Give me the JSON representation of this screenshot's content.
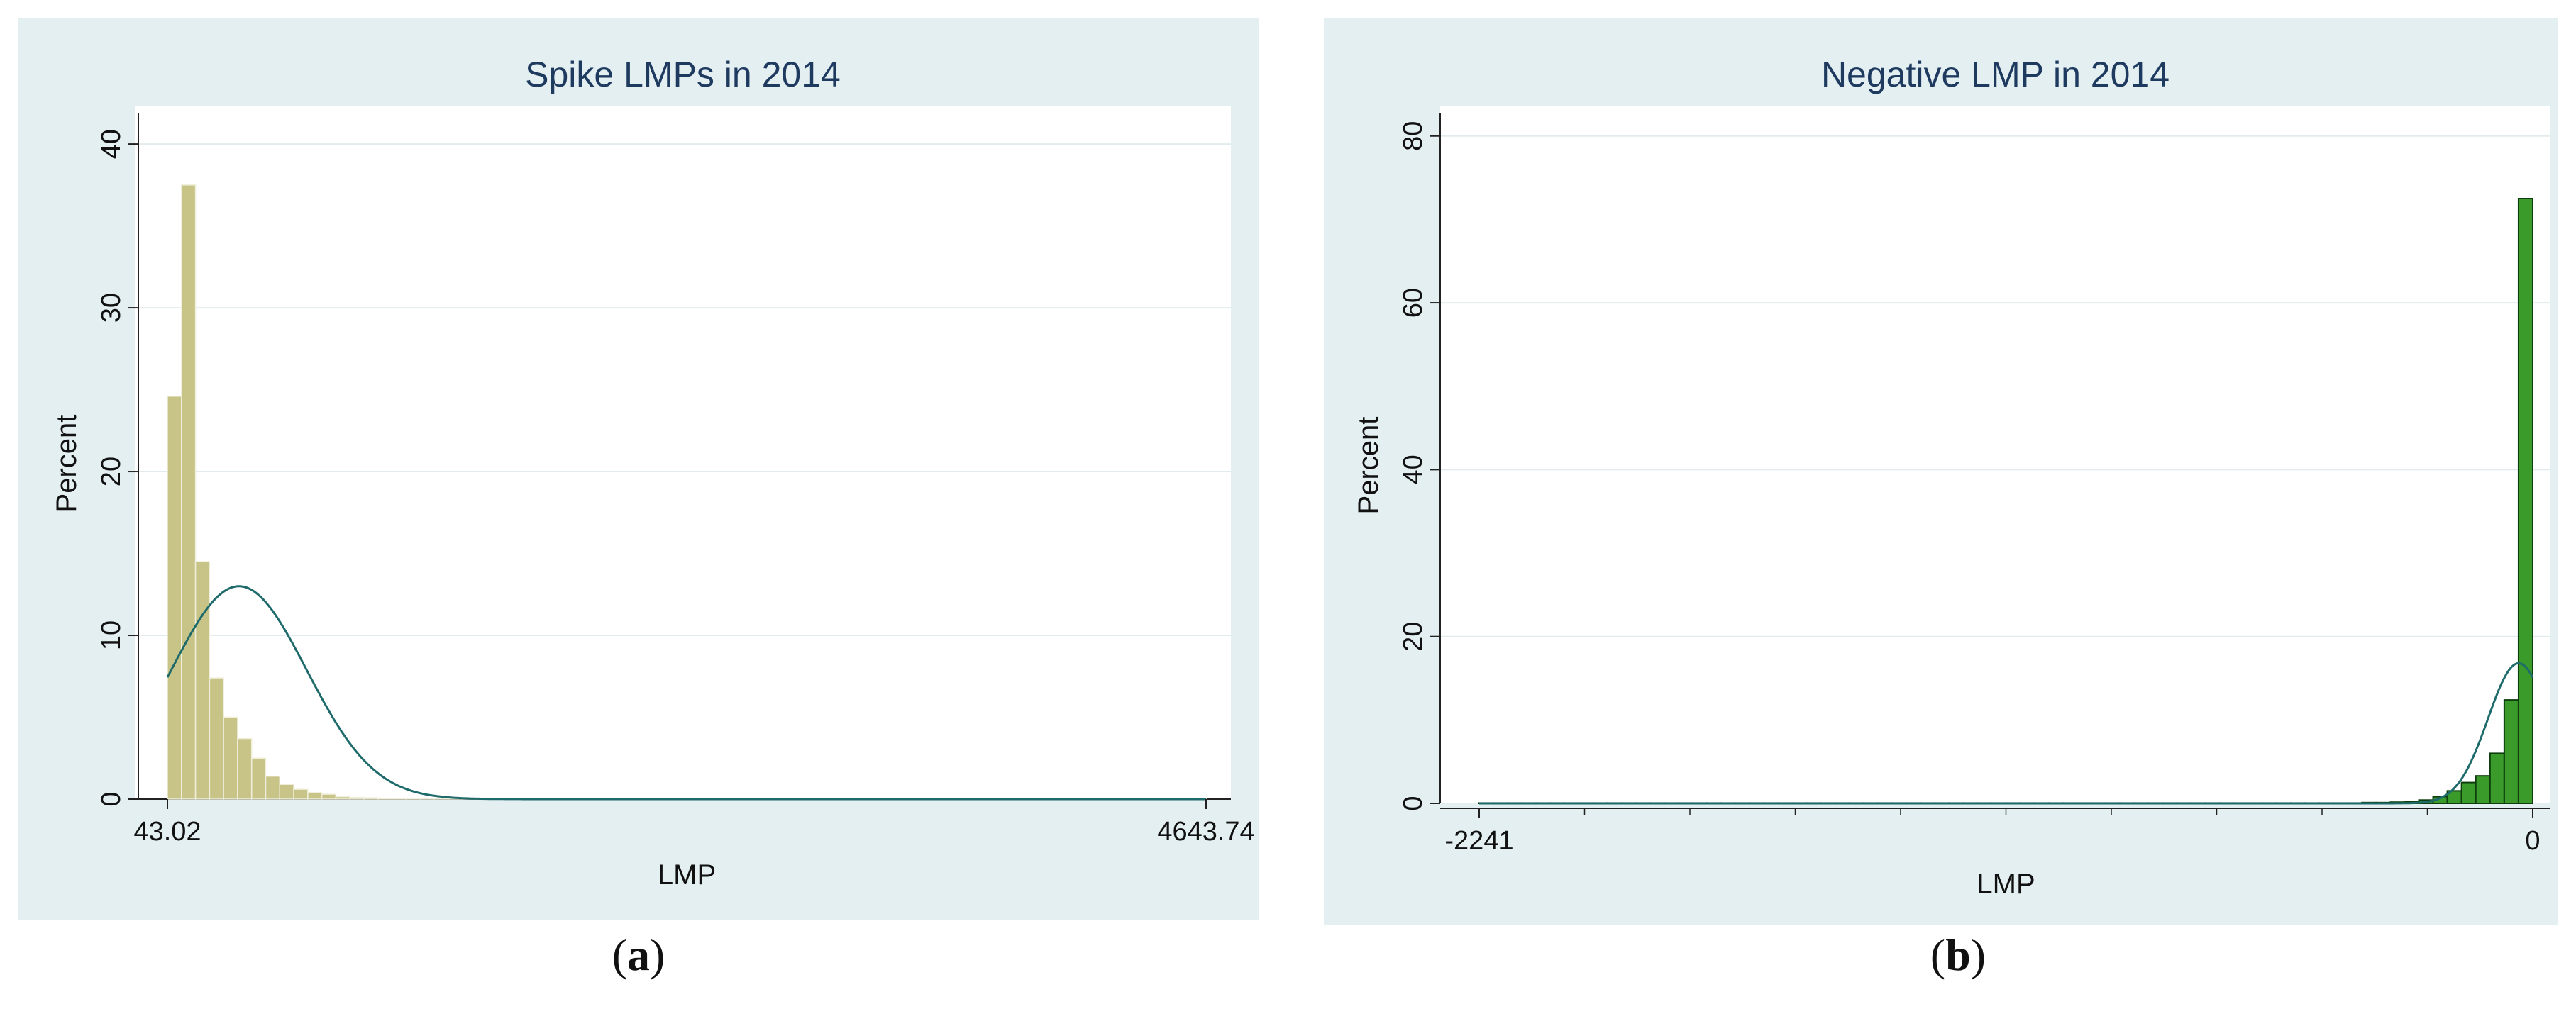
{
  "chart_data": [
    {
      "type": "bar",
      "title": "Spike LMPs in 2014",
      "xlabel": "LMP",
      "ylabel": "Percent",
      "caption": "a",
      "x_tick_labels": [
        "43.02",
        "4643.74"
      ],
      "xlim": [
        43.02,
        4643.74
      ],
      "ylim": [
        0,
        41
      ],
      "y_ticks": [
        0,
        10,
        20,
        30,
        40
      ],
      "grid": true,
      "bar_color": "#c8c488",
      "bar_edge": "#efefdc",
      "curve_color": "#1f6b6b",
      "bins": 74,
      "values": [
        24.6,
        37.5,
        14.5,
        7.4,
        5.0,
        3.7,
        2.5,
        1.4,
        0.9,
        0.6,
        0.4,
        0.3,
        0.15,
        0.1,
        0.08,
        0.06,
        0.05,
        0.05,
        0.04,
        0.04,
        0.03,
        0.03,
        0.03,
        0.03,
        0.03,
        0.03,
        0.03,
        0.03,
        0.03,
        0.03,
        0.03,
        0.03,
        0.03,
        0.03,
        0.03,
        0.03,
        0.03,
        0.03,
        0.03,
        0.03,
        0.03,
        0.03,
        0.03,
        0.03,
        0.03,
        0.03,
        0.03,
        0.03,
        0.03,
        0.03,
        0.03,
        0.03,
        0.03,
        0.03,
        0.03,
        0.03,
        0.03,
        0.03,
        0.03,
        0.03,
        0.03,
        0.03,
        0.03,
        0.03,
        0.03,
        0.03,
        0.03,
        0.03,
        0.03,
        0.03,
        0.03,
        0.03,
        0.03,
        0.05
      ],
      "normal_curve": {
        "mean": 360,
        "sd": 300,
        "peak": 13.0
      }
    },
    {
      "type": "bar",
      "title": "Negative LMP in 2014",
      "xlabel": "LMP",
      "ylabel": "Percent",
      "caption": "b",
      "x_tick_labels": [
        "-2241",
        "0"
      ],
      "xlim": [
        -2241,
        0
      ],
      "ylim": [
        0,
        81
      ],
      "y_ticks": [
        0,
        20,
        40,
        60,
        80
      ],
      "grid": true,
      "bar_color": "#3a9a2a",
      "bar_edge": "#0e3e0e",
      "curve_color": "#1f6b6b",
      "bins": 74,
      "values": [
        0.05,
        0.05,
        0.05,
        0.05,
        0.05,
        0.05,
        0.05,
        0.05,
        0.05,
        0.05,
        0.05,
        0.05,
        0.05,
        0.05,
        0.05,
        0.05,
        0.05,
        0.05,
        0.05,
        0.05,
        0.05,
        0.05,
        0.05,
        0.05,
        0.05,
        0.05,
        0.05,
        0.05,
        0.05,
        0.05,
        0.05,
        0.05,
        0.05,
        0.05,
        0.05,
        0.05,
        0.05,
        0.05,
        0.05,
        0.05,
        0.05,
        0.05,
        0.05,
        0.05,
        0.05,
        0.05,
        0.05,
        0.05,
        0.05,
        0.05,
        0.05,
        0.05,
        0.05,
        0.05,
        0.05,
        0.05,
        0.05,
        0.05,
        0.05,
        0.05,
        0.05,
        0.05,
        0.1,
        0.1,
        0.15,
        0.2,
        0.4,
        0.8,
        1.5,
        2.5,
        3.3,
        6.0,
        12.4,
        72.5
      ],
      "normal_curve": {
        "mean": -30,
        "sd": 65,
        "peak": 16.8
      }
    }
  ]
}
